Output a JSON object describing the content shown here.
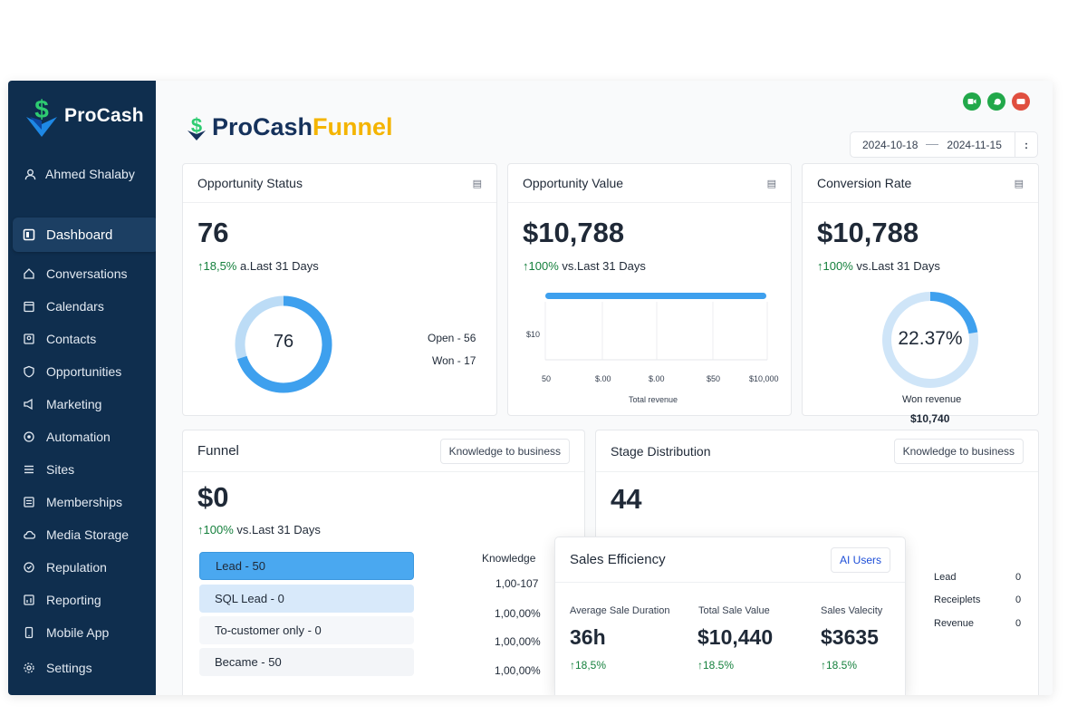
{
  "sidebar": {
    "brand": "ProCash",
    "user_name": "Ahmed Shalaby",
    "items": [
      {
        "label": "Dashboard"
      },
      {
        "label": "Conversations"
      },
      {
        "label": "Calendars"
      },
      {
        "label": "Contacts"
      },
      {
        "label": "Opportunities"
      },
      {
        "label": "Marketing"
      },
      {
        "label": "Automation"
      },
      {
        "label": "Sites"
      },
      {
        "label": "Memberships"
      },
      {
        "label": "Media Storage"
      },
      {
        "label": "Repulation"
      },
      {
        "label": "Reporting"
      },
      {
        "label": "Mobile App"
      },
      {
        "label": "Settings"
      }
    ]
  },
  "header": {
    "title_part1": "ProCash",
    "title_part2": "Funnel",
    "date_start": "2024-10-18",
    "date_end": "2024-11-15",
    "more": ":",
    "icon_colors": [
      "#22a84a",
      "#22a84a",
      "#e04f3f"
    ]
  },
  "opportunity_status": {
    "title": "Opportunity Status",
    "value": "76",
    "delta_arrow": "↑",
    "delta_value": "18,5%",
    "delta_text": "a.Last 31 Days",
    "donut_label": "76",
    "open": "Open -  56",
    "won": "Won -  17"
  },
  "opportunity_value": {
    "title": "Opportunity Value",
    "value": "$10,788",
    "delta_arrow": "↑",
    "delta_value": "100%",
    "delta_text": "vs.Last 31 Days",
    "y_label": "$10",
    "x_labels": [
      "50",
      "$.00",
      "$.00",
      "$50",
      "$10,000"
    ],
    "x_title": "Total revenue"
  },
  "conversion_rate": {
    "title": "Conversion Rate",
    "value": "$10,788",
    "delta_arrow": "↑",
    "delta_value": "100%",
    "delta_text": "vs.Last 31 Days",
    "donut_label": "22.37%",
    "won_revenue_label": "Won revenue",
    "won_revenue_value": "$10,740",
    "percent": 22.37
  },
  "funnel": {
    "title": "Funnel",
    "button": "Knowledge to business",
    "value": "$0",
    "delta_arrow": "↑",
    "delta_value": "100%",
    "delta_text": "vs.Last 31 Days",
    "stages": [
      "Lead - 50",
      "SQL Lead - 0",
      "To-customer only - 0",
      "Became - 50"
    ],
    "column_header": "Knowledge",
    "column_values": [
      "1,00-107",
      "1,00,00%",
      "1,00,00%",
      "1,00,00%"
    ]
  },
  "stage_distribution": {
    "title": "Stage Distribution",
    "button": "Knowledge to business",
    "value": "44",
    "rows": [
      {
        "label": "Lead",
        "value": "0"
      },
      {
        "label": "Receiplets",
        "value": "0"
      },
      {
        "label": "Revenue",
        "value": "0"
      }
    ]
  },
  "sales_efficiency": {
    "title": "Sales Efficiency",
    "button": "AI Users",
    "metrics": [
      {
        "label": "Average Sale Duration",
        "value": "36h",
        "delta": "18,5%"
      },
      {
        "label": "Total Sale Value",
        "value": "$10,440",
        "delta": "18.5%"
      },
      {
        "label": "Sales Valecity",
        "value": "$3635",
        "delta": "18.5%"
      }
    ],
    "arrow": "↑"
  }
}
